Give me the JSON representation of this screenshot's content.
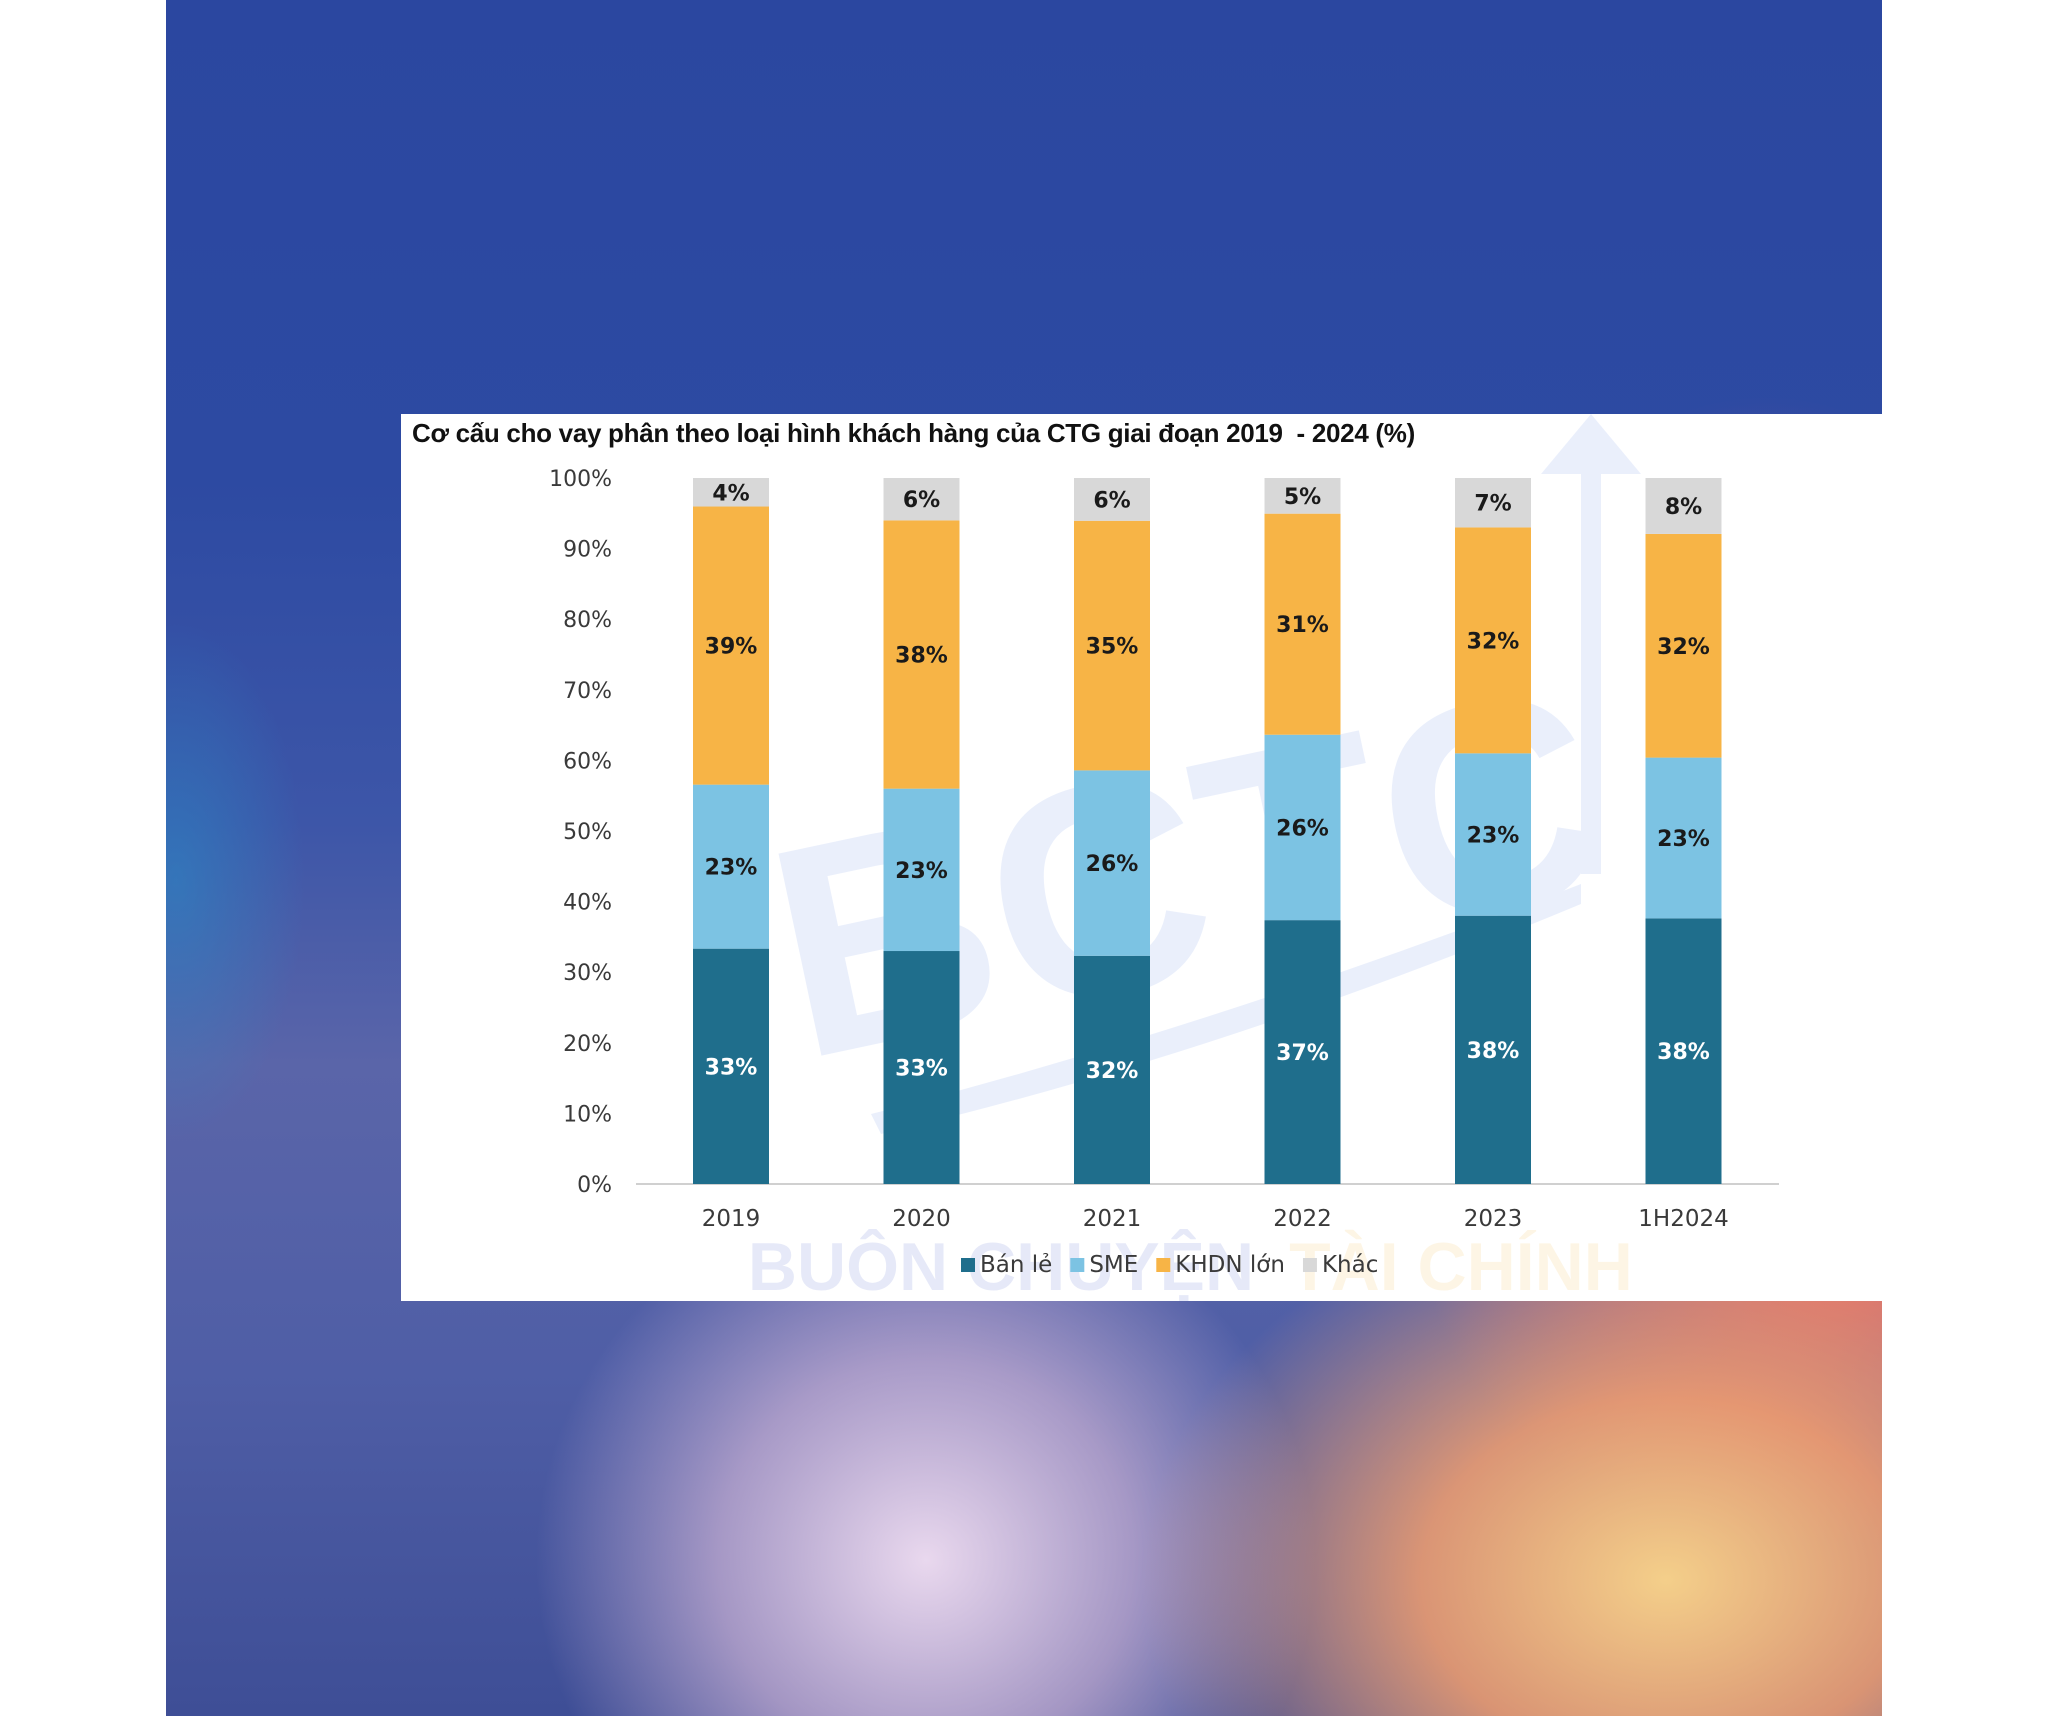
{
  "colors": {
    "ban_le": "#1f6e8c",
    "sme": "#7cc3e3",
    "khdn_lon": "#f7b446",
    "khac": "#d8d8d8",
    "label_dark": "#1a1a1a",
    "label_light": "#ffffff"
  },
  "watermark": {
    "logo_text": "BCTC",
    "word_1": "BUÔN CHUYỆN",
    "word_2": "TÀI CHÍNH"
  },
  "chart_data": {
    "type": "bar",
    "stacked": true,
    "title": "Cơ cấu cho vay phân theo loại hình khách hàng của CTG giai đoạn 2019  - 2024 (%)",
    "categories": [
      "2019",
      "2020",
      "2021",
      "2022",
      "2023",
      "1H2024"
    ],
    "y_ticks": [
      "0%",
      "10%",
      "20%",
      "30%",
      "40%",
      "50%",
      "60%",
      "70%",
      "80%",
      "90%",
      "100%"
    ],
    "ylim": [
      0,
      100
    ],
    "legend_position": "bottom-center",
    "grid": false,
    "series": [
      {
        "name": "Bán lẻ",
        "color_key": "ban_le",
        "label_color": "label_light",
        "values": [
          33,
          33,
          32,
          37,
          38,
          38
        ],
        "labels": [
          "33%",
          "33%",
          "32%",
          "37%",
          "38%",
          "38%"
        ]
      },
      {
        "name": "SME",
        "color_key": "sme",
        "label_color": "label_dark",
        "values": [
          23,
          23,
          26,
          26,
          23,
          23
        ],
        "labels": [
          "23%",
          "23%",
          "26%",
          "26%",
          "23%",
          "23%"
        ]
      },
      {
        "name": "KHDN lớn",
        "color_key": "khdn_lon",
        "label_color": "label_dark",
        "values": [
          39,
          38,
          35,
          31,
          32,
          32
        ],
        "labels": [
          "39%",
          "38%",
          "35%",
          "31%",
          "32%",
          "32%"
        ]
      },
      {
        "name": "Khác",
        "color_key": "khac",
        "label_color": "label_dark",
        "values": [
          4,
          6,
          6,
          5,
          7,
          8
        ],
        "labels": [
          "4%",
          "6%",
          "6%",
          "5%",
          "7%",
          "8%"
        ]
      }
    ]
  }
}
